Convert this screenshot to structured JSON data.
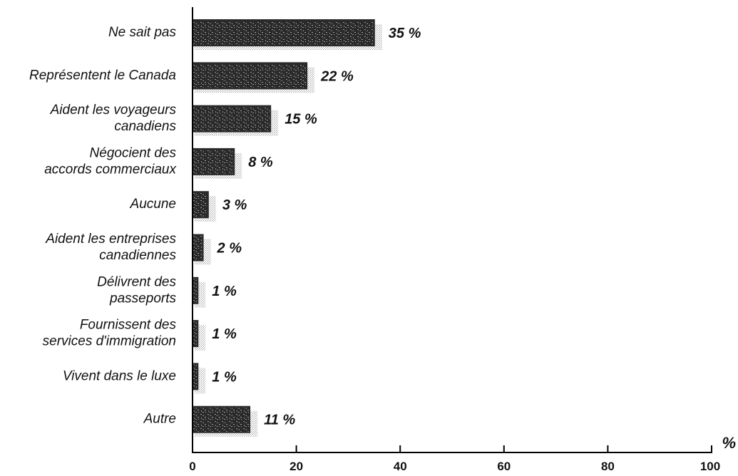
{
  "chart_data": {
    "type": "bar",
    "orientation": "horizontal",
    "categories": [
      [
        "Ne sait pas"
      ],
      [
        "Représentent le Canada"
      ],
      [
        "Aident les voyageurs",
        "canadiens"
      ],
      [
        "Négocient des",
        "accords commerciaux"
      ],
      [
        "Aucune"
      ],
      [
        "Aident les entreprises",
        "canadiennes"
      ],
      [
        "Délivrent des",
        "passeports"
      ],
      [
        "Fournissent des",
        "services d'immigration"
      ],
      [
        "Vivent dans le luxe"
      ],
      [
        "Autre"
      ]
    ],
    "values": [
      35,
      22,
      15,
      8,
      3,
      2,
      1,
      1,
      1,
      11
    ],
    "value_labels": [
      "35 %",
      "22 %",
      "15 %",
      "8 %",
      "3 %",
      "2 %",
      "1 %",
      "1 %",
      "1 %",
      "11 %"
    ],
    "xlim": [
      0,
      100
    ],
    "xticks": [
      0,
      20,
      40,
      60,
      80,
      100
    ],
    "xtick_labels": [
      "0",
      "20",
      "40",
      "60",
      "80",
      "100"
    ],
    "xunit": "%",
    "grid": false,
    "legend": "none",
    "colors": {
      "bar": "#2a2a2a",
      "shadow": "#bcbcbc",
      "axis": "#000000",
      "text": "#111111"
    }
  }
}
